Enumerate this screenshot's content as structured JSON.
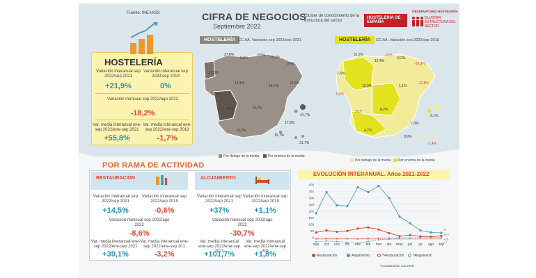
{
  "source": "Fuente: INE-IASS",
  "title": "CIFRA DE NEGOCIOS",
  "subtitle": "Septiembre 2022",
  "cluster_text": "Cluster de conocimiento de la estructura del sector",
  "brand": {
    "name": "HOSTELERÍA DE ESPAÑA",
    "obs_title": "OBSERVATORIO HOSTELERÍA",
    "obs_cluster": "CLUSTER ESTRUCTURA DEL SECTOR"
  },
  "hosteleria": {
    "title": "HOSTELERÍA",
    "interanual_label": "Variación interanual sep 2022/sep 2021",
    "interanual_value": "+21,9%",
    "vs2019_label": "Variación interanual sep 2022/sep 2019",
    "vs2019_value": "0%",
    "mensual_label": "Variación mensual sep 2022/ago 2022",
    "mensual_value": "-18,2%",
    "media_label": "Var. media interanual ene-sep 2022/ene-sep 2021",
    "media_value": "+55,8%",
    "media2019_label": "Var. media interanual ene-sep 2022/ene-sep 2019",
    "media2019_value": "-1,7%"
  },
  "map1": {
    "tag": "HOSTELERÍA",
    "caption": "CC.AA. Variación sep 2022/sep 2021",
    "labels": [
      "27,8%",
      "9,8%",
      "8,5%",
      "29,8%",
      "9,4%",
      "21,3%",
      "13,1%",
      "18,7%",
      "21,6%",
      "17,5%",
      "27%",
      "19,7%",
      "41,7%",
      "17,8%",
      "18,2%",
      "15,7%",
      "31,7%"
    ],
    "legend_below": "Por debajo de la media",
    "legend_above": "Por encima de la media"
  },
  "map2": {
    "tag": "HOSTELERÍA",
    "caption": "CC.AA. Variación sep 2022/sep 2019",
    "labels": [
      "31,2%",
      "-10%",
      "12,4%",
      "8,2%",
      "-16,3%",
      "1,5%",
      "12,9%",
      "1,1%",
      "-12,8%",
      "-6,5%",
      "8,2%",
      "31,7",
      "7,3%",
      "9,1%",
      "4,7%",
      "9,9%",
      "-1,4%"
    ],
    "legend_below": "Por debajo de la media",
    "legend_above": "Por encima de la media"
  },
  "rama": {
    "title": "POR RAMA DE ACTIVIDAD",
    "restauracion": {
      "name": "RESTAURACIÓN",
      "interanual_label": "Variación interanual sep 2022/sep 2021",
      "interanual_value": "+14,5%",
      "vs2019_label": "Variación interanual sep 2022/sep 2019",
      "vs2019_value": "-0,6%",
      "mensual_label": "Variación mensual sep 2022/ago 2022",
      "mensual_value": "-8,6%",
      "media_label": "Var. media interanual ene-sep 2022/ene-sep 2021",
      "media_value": "+39,1%",
      "media2019_label": "Var. media interanual ene-sep 2022/ene-sep 201",
      "media2019_value": "-3,2%"
    },
    "alojamiento": {
      "name": "ALOJAMIENTO",
      "interanual_label": "Variación interanual sep 2022/sep 2021",
      "interanual_value": "+37%",
      "vs2019_label": "Variación interanual sep 2022/sep 2019",
      "vs2019_value": "+1,1%",
      "mensual_label": "Variación mensual sep 2022/ago 2022",
      "mensual_value": "-30,7%",
      "media_label": "Var. media interanual ene-sep 2022/ene-sep 2021",
      "media_value": "+101,7%",
      "media2019_label": "Var. media interanual ene-sep 2022/ene-sep 201",
      "media2019_value": "+1,8%"
    }
  },
  "chart_data": {
    "type": "line",
    "title": "EVOLUCIÓN INTERANUAL. Años 2021-2022",
    "categories": [
      "sep",
      "oct",
      "nov",
      "dic",
      "ene",
      "feb",
      "mar",
      "abr",
      "may",
      "jun",
      "jul",
      "ago",
      "sep"
    ],
    "ylim": [
      -10,
      400
    ],
    "yticks": [
      0,
      50,
      100,
      150,
      200,
      250,
      300,
      350,
      400
    ],
    "series": [
      {
        "name": "Restauración",
        "color": "#d9482f",
        "dashed": false,
        "values": [
          40,
          55,
          45,
          52,
          70,
          78,
          62,
          35,
          12,
          20,
          10,
          8,
          14
        ]
      },
      {
        "name": "Alojamiento",
        "color": "#4a9bb5",
        "dashed": false,
        "values": [
          185,
          345,
          245,
          240,
          382,
          345,
          392,
          300,
          160,
          110,
          55,
          40,
          37
        ]
      },
      {
        "name": "*Restauración",
        "color": "#d9482f",
        "dashed": true,
        "values": [
          -8,
          -6,
          -7,
          -7,
          -9,
          -6,
          -4,
          -3,
          -2,
          -3,
          -2,
          -1,
          -1
        ]
      },
      {
        "name": "*Alojamiento",
        "color": "#4a9bb5",
        "dashed": true,
        "values": [
          -30,
          -25,
          -28,
          -35,
          -40,
          -28,
          -15,
          -10,
          -5,
          -3,
          0,
          1,
          1
        ]
      }
    ],
    "end_labels": [
      "14,5",
      "37",
      "-0,6",
      "1,1"
    ],
    "footnote": "*Comparación con 2019"
  },
  "colors": {
    "accent_red": "#d9482f",
    "accent_blue": "#2b8fb0",
    "yellow": "#e2e21e",
    "map_gray": "#9b9088"
  }
}
